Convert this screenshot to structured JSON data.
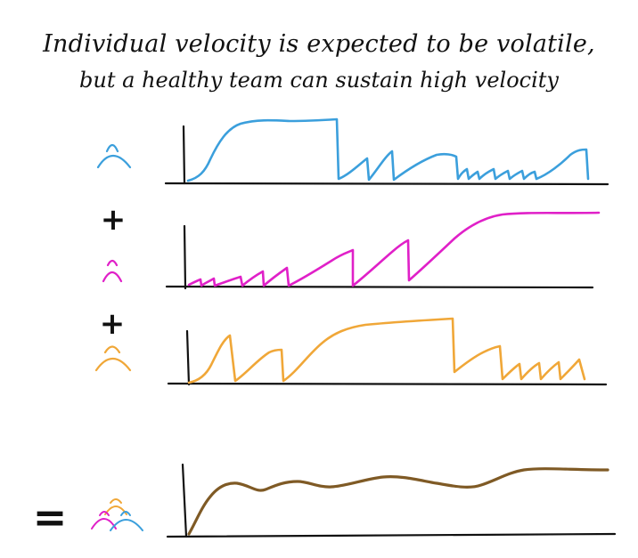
{
  "title": {
    "line1": "Individual velocity is expected to be volatile,",
    "line2": "but a healthy team can sustain high velocity"
  },
  "symbols": {
    "plus_1": "+",
    "plus_2": "+",
    "equals": "="
  },
  "icons": {
    "member_1": "person-icon",
    "member_2": "person-icon",
    "member_3": "person-icon",
    "team": "team-icon"
  },
  "colors": {
    "member_1": "#3b9fdc",
    "member_2": "#e020c8",
    "member_3": "#f0a738",
    "team": "#7f5a25",
    "ink": "#111111"
  },
  "chart_data": [
    {
      "type": "line",
      "series": [
        {
          "values": [
            0,
            0.5,
            0.9,
            0.95,
            0.97,
            0.98,
            1.0,
            0.2,
            0.5,
            0.7,
            0.1,
            0.5,
            0.55,
            0.1,
            0.3,
            0.1,
            0.35,
            0.6
          ]
        }
      ]
    },
    {
      "type": "line",
      "series": [
        {
          "values": [
            0.05,
            0.1,
            0.2,
            0.3,
            0.5,
            0.8,
            0.05,
            0.55,
            0.75,
            1.0,
            1.0
          ]
        }
      ]
    },
    {
      "type": "line",
      "series": [
        {
          "values": [
            0.05,
            0.9,
            0.05,
            0.55,
            0.05,
            0.5,
            0.8,
            0.9,
            0.92,
            0.95,
            0.2,
            0.35,
            0.05,
            0.3,
            0.3,
            0.3
          ]
        }
      ]
    },
    {
      "type": "line",
      "series": [
        {
          "values": [
            0,
            0.8,
            0.65,
            0.75,
            0.65,
            0.8,
            0.7,
            0.75,
            0.6,
            0.85,
            0.85
          ]
        }
      ]
    }
  ]
}
